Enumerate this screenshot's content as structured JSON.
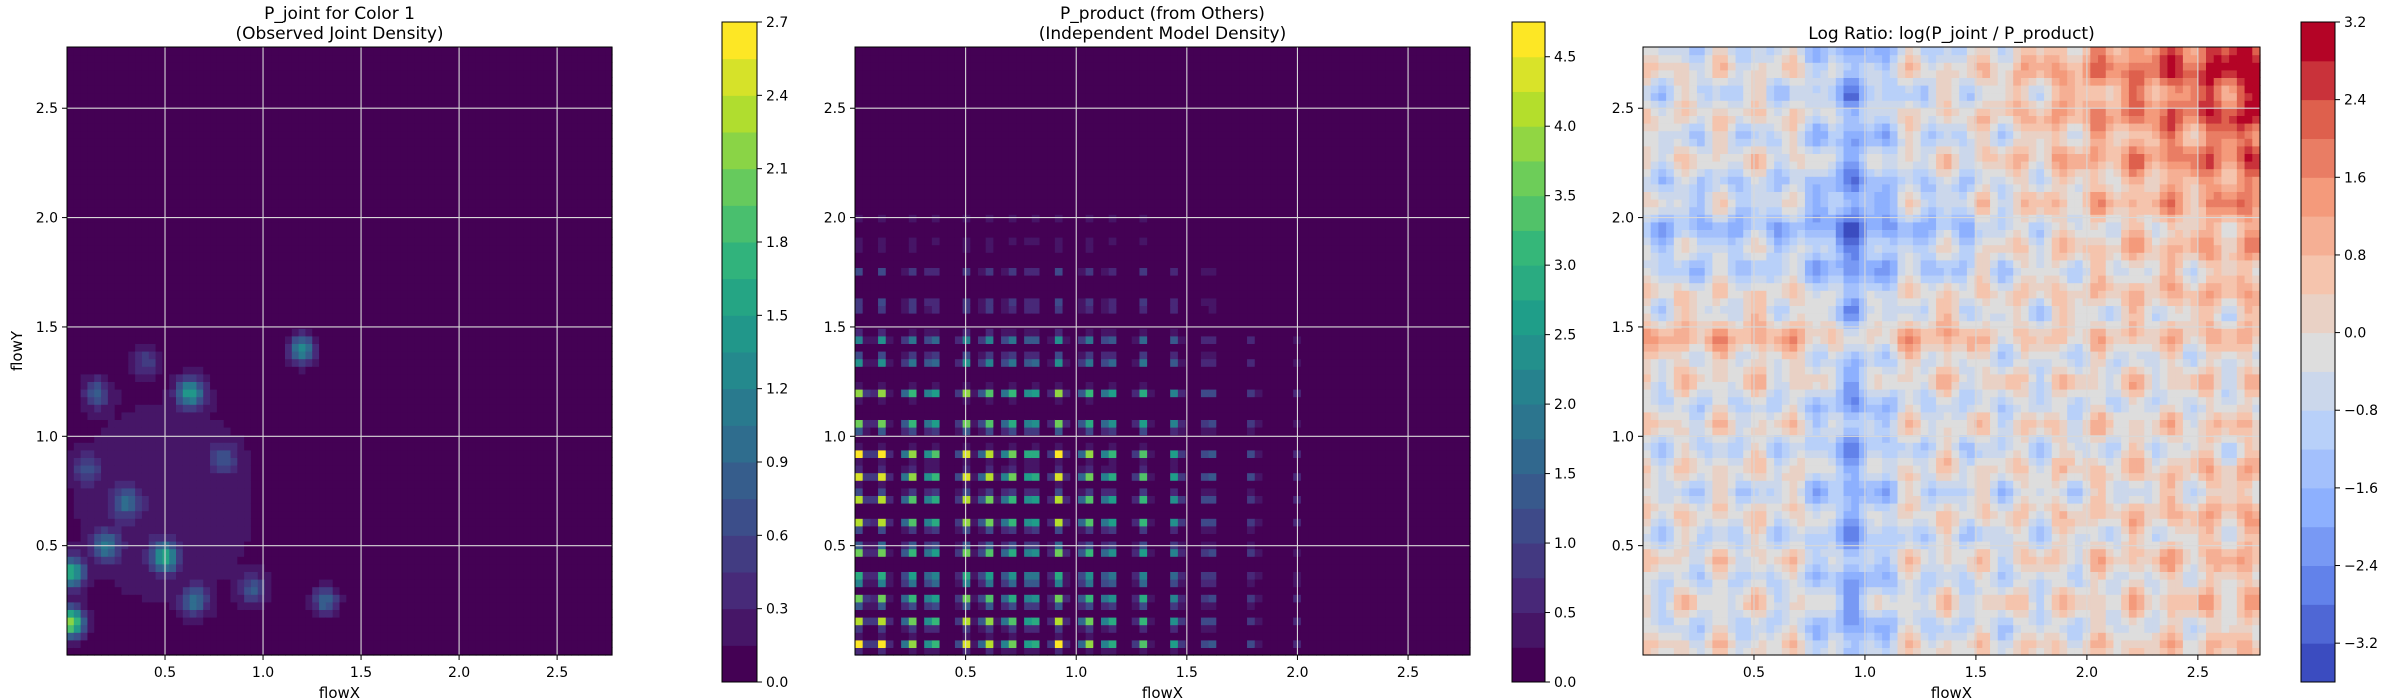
{
  "chart_data": [
    {
      "type": "heatmap",
      "title": "P_joint for Color 1\n(Observed Joint Density)",
      "xlabel": "flowX",
      "ylabel": "flowY",
      "xlim": [
        0.0,
        2.78
      ],
      "ylim": [
        0.0,
        2.78
      ],
      "xticks": [
        0.5,
        1.0,
        1.5,
        2.0,
        2.5
      ],
      "xtick_labels": [
        "0.5",
        "1.0",
        "1.5",
        "2.0",
        "2.5"
      ],
      "yticks": [
        0.5,
        1.0,
        1.5,
        2.0,
        2.5
      ],
      "ytick_labels": [
        "0.5",
        "1.0",
        "1.5",
        "2.0",
        "2.5"
      ],
      "grid": true,
      "colormap": "viridis",
      "colorbar": {
        "min": 0.0,
        "max": 2.7,
        "ticks": [
          0.0,
          0.3,
          0.6,
          0.9,
          1.2,
          1.5,
          1.8,
          2.1,
          2.4,
          2.7
        ],
        "tick_labels": [
          "0.0",
          "0.3",
          "0.6",
          "0.9",
          "1.2",
          "1.5",
          "1.8",
          "2.1",
          "2.4",
          "2.7"
        ],
        "levels": 18
      },
      "hotspots": [
        {
          "x": 0.02,
          "y": 0.15,
          "value": 2.2
        },
        {
          "x": 0.02,
          "y": 0.38,
          "value": 1.6
        },
        {
          "x": 0.5,
          "y": 0.45,
          "value": 1.5
        },
        {
          "x": 0.63,
          "y": 1.2,
          "value": 1.4
        },
        {
          "x": 1.2,
          "y": 1.4,
          "value": 1.3
        },
        {
          "x": 0.2,
          "y": 0.5,
          "value": 1.0
        },
        {
          "x": 0.15,
          "y": 1.2,
          "value": 0.7
        },
        {
          "x": 0.3,
          "y": 0.7,
          "value": 0.8
        },
        {
          "x": 1.32,
          "y": 0.25,
          "value": 0.9
        },
        {
          "x": 0.8,
          "y": 0.9,
          "value": 0.6
        },
        {
          "x": 0.95,
          "y": 0.3,
          "value": 0.7
        },
        {
          "x": 0.65,
          "y": 0.25,
          "value": 0.9
        },
        {
          "x": 0.1,
          "y": 0.85,
          "value": 0.6
        },
        {
          "x": 0.4,
          "y": 1.35,
          "value": 0.5
        }
      ]
    },
    {
      "type": "heatmap",
      "title": "P_product (from Others)\n(Independent Model Density)",
      "xlabel": "flowX",
      "ylabel": "",
      "xlim": [
        0.0,
        2.78
      ],
      "ylim": [
        0.0,
        2.78
      ],
      "xticks": [
        0.5,
        1.0,
        1.5,
        2.0,
        2.5
      ],
      "xtick_labels": [
        "0.5",
        "1.0",
        "1.5",
        "2.0",
        "2.5"
      ],
      "yticks": [
        0.5,
        1.0,
        1.5,
        2.0,
        2.5
      ],
      "ytick_labels": [
        "0.5",
        "1.0",
        "1.5",
        "2.0",
        "2.5"
      ],
      "grid": true,
      "colormap": "viridis",
      "colorbar": {
        "min": 0.0,
        "max": 4.75,
        "ticks": [
          0.0,
          0.5,
          1.0,
          1.5,
          2.0,
          2.5,
          3.0,
          3.5,
          4.0,
          4.5
        ],
        "tick_labels": [
          "0.0",
          "0.5",
          "1.0",
          "1.5",
          "2.0",
          "2.5",
          "3.0",
          "3.5",
          "4.0",
          "4.5"
        ],
        "levels": 19
      },
      "x_peaks": [
        0.02,
        0.12,
        0.25,
        0.35,
        0.5,
        0.6,
        0.7,
        0.8,
        0.92,
        1.05,
        1.15,
        1.3,
        1.45,
        1.6,
        1.8,
        2.0
      ],
      "y_peaks": [
        0.05,
        0.15,
        0.25,
        0.35,
        0.48,
        0.6,
        0.72,
        0.82,
        0.92,
        1.05,
        1.2,
        1.35,
        1.45,
        1.6,
        1.75,
        1.88,
        2.0
      ],
      "peak_value": 4.6
    },
    {
      "type": "heatmap",
      "title": "Log Ratio: log(P_joint / P_product)",
      "xlabel": "flowX",
      "ylabel": "",
      "xlim": [
        0.0,
        2.78
      ],
      "ylim": [
        0.0,
        2.78
      ],
      "xticks": [
        0.5,
        1.0,
        1.5,
        2.0,
        2.5
      ],
      "xtick_labels": [
        "0.5",
        "1.0",
        "1.5",
        "2.0",
        "2.5"
      ],
      "yticks": [
        0.5,
        1.0,
        1.5,
        2.0,
        2.5
      ],
      "ytick_labels": [
        "0.5",
        "1.0",
        "1.5",
        "2.0",
        "2.5"
      ],
      "grid": true,
      "colormap": "coolwarm",
      "colorbar": {
        "min": -3.6,
        "max": 3.2,
        "ticks": [
          -3.2,
          -2.4,
          -1.6,
          -0.8,
          0.0,
          0.8,
          1.6,
          2.4,
          3.2
        ],
        "tick_labels": [
          "−3.2",
          "−2.4",
          "−1.6",
          "−0.8",
          "0.0",
          "0.8",
          "1.6",
          "2.4",
          "3.2"
        ],
        "levels": 17
      }
    }
  ]
}
